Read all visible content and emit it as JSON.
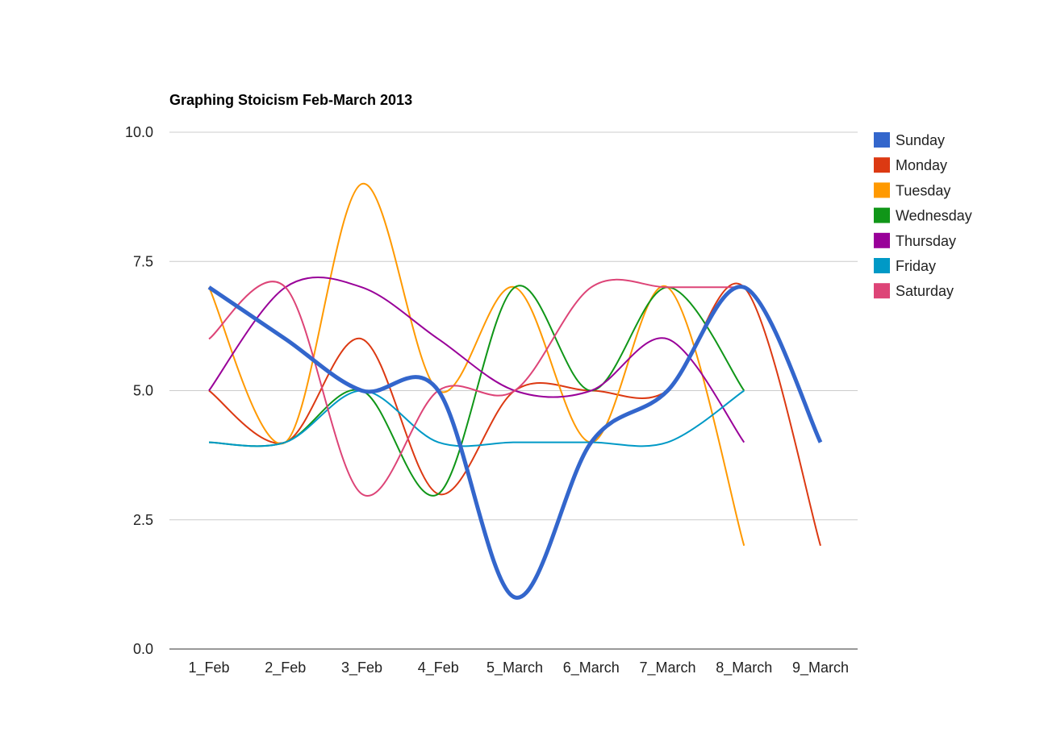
{
  "chart_data": {
    "type": "line",
    "title": "Graphing Stoicism Feb-March 2013",
    "xlabel": "",
    "ylabel": "",
    "categories": [
      "1_Feb",
      "2_Feb",
      "3_Feb",
      "4_Feb",
      "5_March",
      "6_March",
      "7_March",
      "8_March",
      "9_March"
    ],
    "ylim": [
      0,
      10
    ],
    "yticks": [
      "0.0",
      "2.5",
      "5.0",
      "7.5",
      "10.0"
    ],
    "grid": true,
    "legend_position": "right",
    "curve": "smooth",
    "series": [
      {
        "name": "Sunday",
        "color": "#3366cc",
        "emphasized": true,
        "values": [
          7,
          6,
          5,
          5,
          1,
          4,
          5,
          7,
          4
        ]
      },
      {
        "name": "Monday",
        "color": "#dc3912",
        "values": [
          5,
          4,
          6,
          3,
          5,
          5,
          5,
          7,
          2
        ]
      },
      {
        "name": "Tuesday",
        "color": "#ff9900",
        "values": [
          7,
          4,
          9,
          5,
          7,
          4,
          7,
          2,
          null
        ]
      },
      {
        "name": "Wednesday",
        "color": "#109618",
        "values": [
          4,
          4,
          5,
          3,
          7,
          5,
          7,
          5,
          null
        ]
      },
      {
        "name": "Thursday",
        "color": "#990099",
        "values": [
          5,
          7,
          7,
          6,
          5,
          5,
          6,
          4,
          null
        ]
      },
      {
        "name": "Friday",
        "color": "#0099c6",
        "values": [
          4,
          4,
          5,
          4,
          4,
          4,
          4,
          5,
          null
        ]
      },
      {
        "name": "Saturday",
        "color": "#dd4477",
        "values": [
          6,
          7,
          3,
          5,
          5,
          7,
          7,
          7,
          null
        ]
      }
    ]
  }
}
